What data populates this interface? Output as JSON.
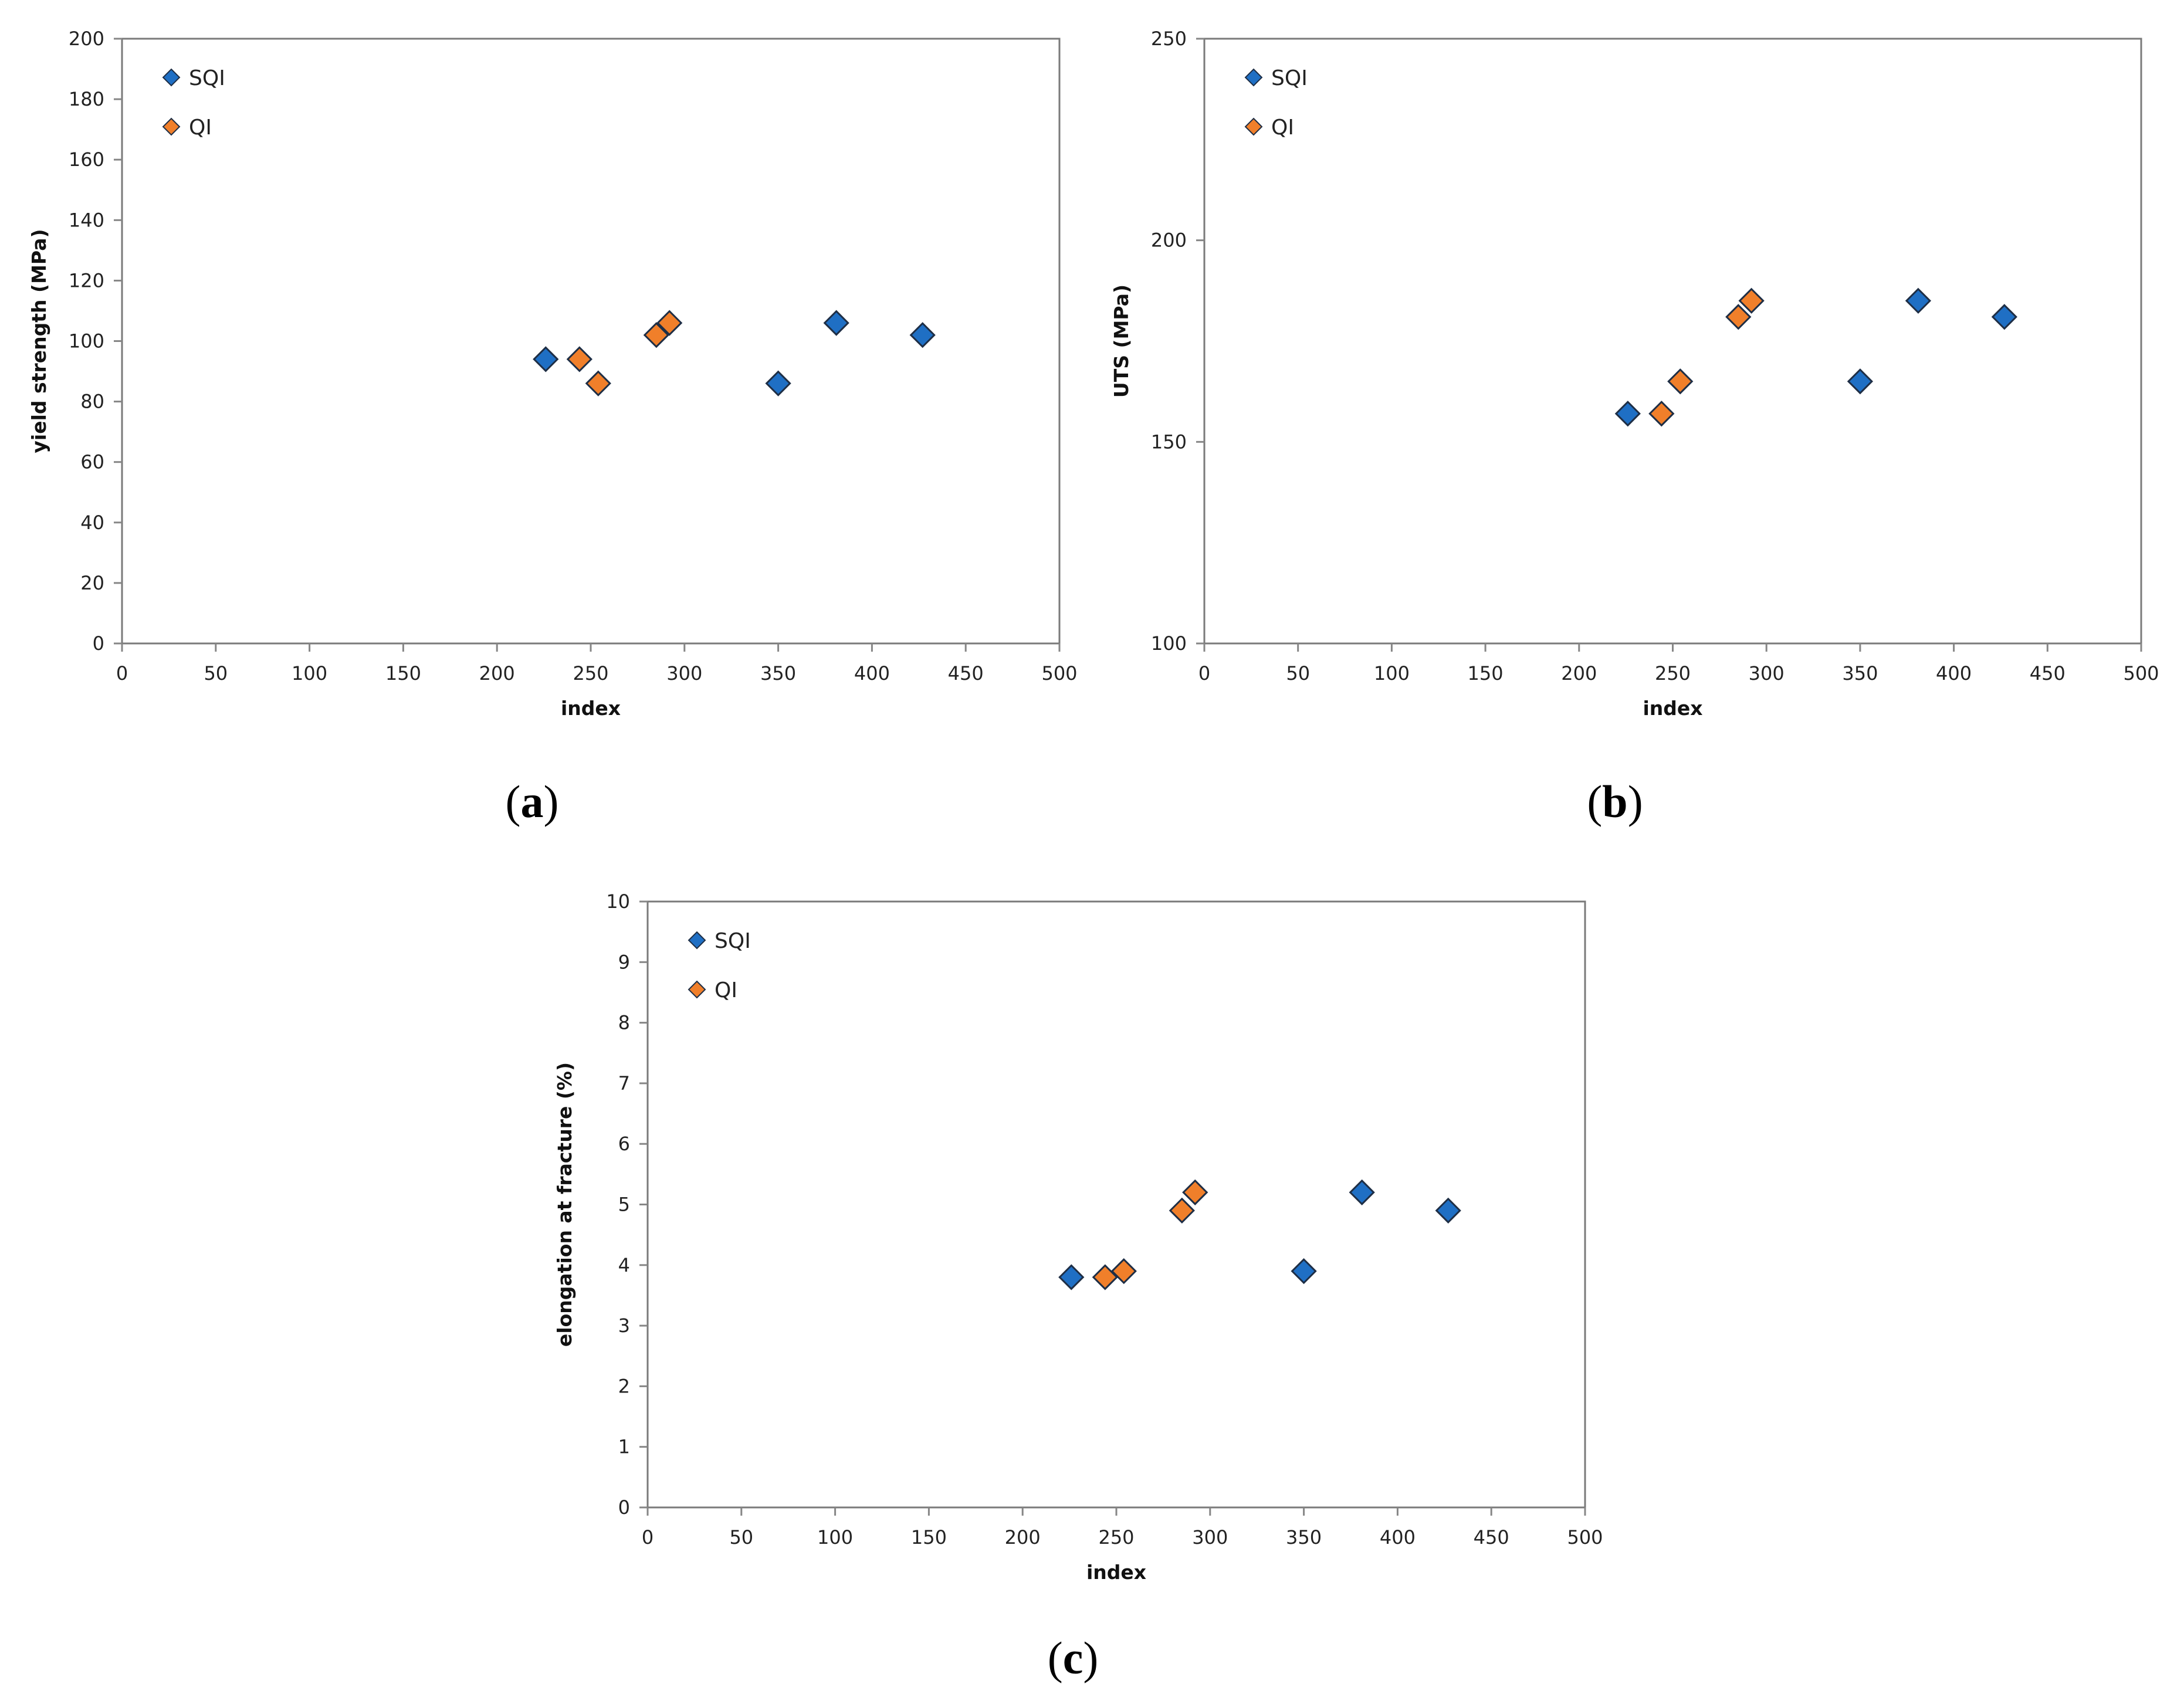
{
  "colors": {
    "SQI": "#1f6fc4",
    "QI": "#f07f2a",
    "marker_stroke": "#1e2e45",
    "axis": "#868686",
    "frame": "#7a7a7a"
  },
  "chart_data": [
    {
      "id": "a",
      "type": "scatter",
      "panel_label": {
        "open": "(",
        "letter": "a",
        "close": ")"
      },
      "xlabel": "index",
      "ylabel": "yield strength (MPa)",
      "xlim": [
        0,
        500
      ],
      "ylim": [
        0,
        200
      ],
      "xticks": [
        0,
        50,
        100,
        150,
        200,
        250,
        300,
        350,
        400,
        450,
        500
      ],
      "yticks": [
        0,
        20,
        40,
        60,
        80,
        100,
        120,
        140,
        160,
        180,
        200
      ],
      "legend": {
        "position": "top-left",
        "entries": [
          "SQI",
          "QI"
        ]
      },
      "series": [
        {
          "name": "SQI",
          "x": [
            226,
            350,
            381,
            427
          ],
          "y": [
            94,
            86,
            106,
            102
          ]
        },
        {
          "name": "QI",
          "x": [
            244,
            254,
            285,
            292
          ],
          "y": [
            94,
            86,
            102,
            106
          ]
        }
      ]
    },
    {
      "id": "b",
      "type": "scatter",
      "panel_label": {
        "open": "(",
        "letter": "b",
        "close": ")"
      },
      "xlabel": "index",
      "ylabel": "UTS (MPa)",
      "xlim": [
        0,
        500
      ],
      "ylim": [
        100,
        250
      ],
      "xticks": [
        0,
        50,
        100,
        150,
        200,
        250,
        300,
        350,
        400,
        450,
        500
      ],
      "yticks": [
        100,
        150,
        200,
        250
      ],
      "legend": {
        "position": "top-left",
        "entries": [
          "SQI",
          "QI"
        ]
      },
      "series": [
        {
          "name": "SQI",
          "x": [
            226,
            350,
            381,
            427
          ],
          "y": [
            157,
            165,
            185,
            181
          ]
        },
        {
          "name": "QI",
          "x": [
            244,
            254,
            285,
            292
          ],
          "y": [
            157,
            165,
            181,
            185
          ]
        }
      ]
    },
    {
      "id": "c",
      "type": "scatter",
      "panel_label": {
        "open": "(",
        "letter": "c",
        "close": ")"
      },
      "xlabel": "index",
      "ylabel": "elongation at fracture  (%)",
      "xlim": [
        0,
        500
      ],
      "ylim": [
        0,
        10
      ],
      "xticks": [
        0,
        50,
        100,
        150,
        200,
        250,
        300,
        350,
        400,
        450,
        500
      ],
      "yticks": [
        0,
        1,
        2,
        3,
        4,
        5,
        6,
        7,
        8,
        9,
        10
      ],
      "legend": {
        "position": "top-left",
        "entries": [
          "SQI",
          "QI"
        ]
      },
      "series": [
        {
          "name": "SQI",
          "x": [
            226,
            350,
            381,
            427
          ],
          "y": [
            3.8,
            3.9,
            5.2,
            4.9
          ]
        },
        {
          "name": "QI",
          "x": [
            244,
            254,
            285,
            292
          ],
          "y": [
            3.8,
            3.9,
            4.9,
            5.2
          ]
        }
      ]
    }
  ]
}
